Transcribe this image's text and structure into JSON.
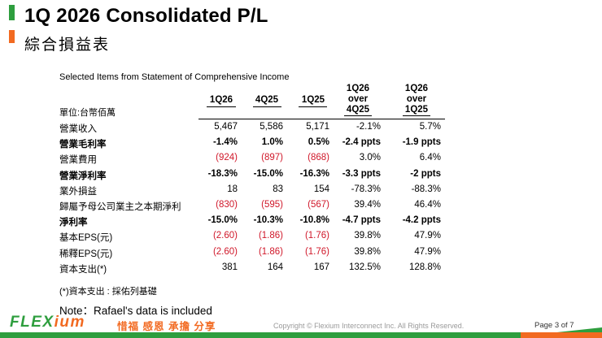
{
  "header": {
    "title": "1Q 2026 Consolidated P/L",
    "subtitle": "綜合損益表"
  },
  "colors": {
    "accent_green": "#2e9e3e",
    "accent_orange": "#f26a21",
    "negative_red": "#d0182a"
  },
  "table": {
    "title": "Selected Items from Statement of Comprehensive Income",
    "unit_label": "單位:台幣佰萬",
    "columns": [
      "1Q26",
      "4Q25",
      "1Q25",
      "1Q26\nover\n4Q25",
      "1Q26\nover\n1Q25"
    ],
    "rows": [
      {
        "label": "營業收入",
        "bold": false,
        "values": [
          "5,467",
          "5,586",
          "5,171",
          "-2.1%",
          "5.7%"
        ],
        "negative": [
          false,
          false,
          false,
          false,
          false
        ]
      },
      {
        "label": "營業毛利率",
        "bold": true,
        "values": [
          "-1.4%",
          "1.0%",
          "0.5%",
          "-2.4 ppts",
          "-1.9 ppts"
        ],
        "negative": [
          false,
          false,
          false,
          false,
          false
        ]
      },
      {
        "label": "營業費用",
        "bold": false,
        "values": [
          "(924)",
          "(897)",
          "(868)",
          "3.0%",
          "6.4%"
        ],
        "negative": [
          true,
          true,
          true,
          false,
          false
        ]
      },
      {
        "label": "營業淨利率",
        "bold": true,
        "values": [
          "-18.3%",
          "-15.0%",
          "-16.3%",
          "-3.3 ppts",
          "-2 ppts"
        ],
        "negative": [
          false,
          false,
          false,
          false,
          false
        ]
      },
      {
        "label": "業外損益",
        "bold": false,
        "values": [
          "18",
          "83",
          "154",
          "-78.3%",
          "-88.3%"
        ],
        "negative": [
          false,
          false,
          false,
          false,
          false
        ]
      },
      {
        "label": "歸屬予母公司業主之本期淨利",
        "bold": false,
        "values": [
          "(830)",
          "(595)",
          "(567)",
          "39.4%",
          "46.4%"
        ],
        "negative": [
          true,
          true,
          true,
          false,
          false
        ]
      },
      {
        "label": "淨利率",
        "bold": true,
        "values": [
          "-15.0%",
          "-10.3%",
          "-10.8%",
          "-4.7 ppts",
          "-4.2 ppts"
        ],
        "negative": [
          false,
          false,
          false,
          false,
          false
        ]
      },
      {
        "label": "基本EPS(元)",
        "bold": false,
        "values": [
          "(2.60)",
          "(1.86)",
          "(1.76)",
          "39.8%",
          "47.9%"
        ],
        "negative": [
          true,
          true,
          true,
          false,
          false
        ]
      },
      {
        "label": "稀釋EPS(元)",
        "bold": false,
        "values": [
          "(2.60)",
          "(1.86)",
          "(1.76)",
          "39.8%",
          "47.9%"
        ],
        "negative": [
          true,
          true,
          true,
          false,
          false
        ]
      },
      {
        "label": "資本支出(*)",
        "bold": false,
        "values": [
          "381",
          "164",
          "167",
          "132.5%",
          "128.8%"
        ],
        "negative": [
          false,
          false,
          false,
          false,
          false
        ]
      }
    ]
  },
  "footnote": "(*)資本支出 : 採佑列基礎",
  "note": "Note：Rafael's data is included",
  "footer": {
    "logo_flex": "FLEX",
    "logo_ium": "ium",
    "slogan": "惜福 感恩 承擔 分享",
    "copyright": "Copyright © Flexium Interconnect Inc. All Rights Reserved.",
    "page": "Page 3 of  7"
  }
}
